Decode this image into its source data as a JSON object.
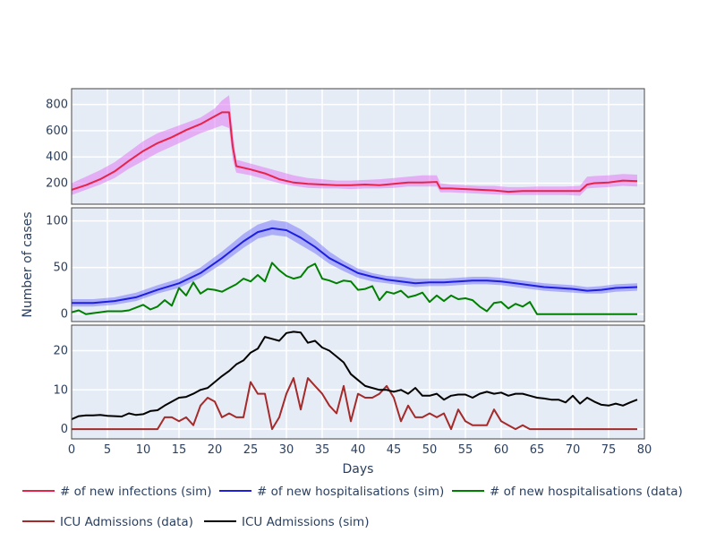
{
  "chart_data": [
    {
      "type": "line",
      "panel": "top",
      "xlim": [
        0,
        80
      ],
      "ylim": [
        40,
        920
      ],
      "y_ticks": [
        200,
        400,
        600,
        800
      ],
      "grid": true,
      "series": [
        {
          "name": "# of new infections (sim)",
          "color": "#e8234a",
          "band_color": "#e27cf0",
          "x": [
            0,
            2,
            4,
            6,
            8,
            10,
            12,
            14,
            16,
            18,
            20,
            21,
            22,
            22.5,
            23,
            25,
            27,
            29,
            31,
            33,
            35,
            37,
            39,
            41,
            43,
            45,
            47,
            49,
            51,
            51.5,
            53,
            55,
            57,
            59,
            61,
            63,
            65,
            67,
            69,
            71,
            72,
            73,
            75,
            77,
            79
          ],
          "values": [
            150,
            185,
            230,
            290,
            370,
            445,
            505,
            550,
            605,
            650,
            710,
            740,
            740,
            480,
            330,
            305,
            275,
            230,
            205,
            195,
            190,
            185,
            185,
            190,
            185,
            195,
            205,
            205,
            210,
            160,
            160,
            155,
            150,
            145,
            135,
            140,
            140,
            140,
            140,
            140,
            190,
            200,
            205,
            220,
            215
          ],
          "upper": [
            200,
            250,
            300,
            360,
            440,
            520,
            580,
            620,
            660,
            700,
            770,
            830,
            870,
            600,
            380,
            350,
            320,
            290,
            260,
            240,
            230,
            220,
            220,
            225,
            230,
            240,
            250,
            260,
            260,
            200,
            190,
            185,
            180,
            180,
            170,
            170,
            175,
            175,
            175,
            180,
            250,
            255,
            260,
            270,
            265
          ],
          "lower": [
            110,
            150,
            190,
            240,
            310,
            370,
            430,
            480,
            530,
            580,
            620,
            640,
            620,
            380,
            280,
            260,
            230,
            200,
            180,
            165,
            160,
            160,
            155,
            160,
            160,
            165,
            175,
            175,
            175,
            130,
            130,
            125,
            120,
            115,
            110,
            110,
            110,
            110,
            110,
            105,
            160,
            165,
            170,
            180,
            175
          ]
        }
      ]
    },
    {
      "type": "line",
      "panel": "middle",
      "xlim": [
        0,
        80
      ],
      "ylim": [
        -8,
        114
      ],
      "y_ticks": [
        0,
        50,
        100
      ],
      "ylabel": "Number of cases",
      "grid": true,
      "series": [
        {
          "name": "# of new hospitalisations (sim)",
          "color": "#1f1fe0",
          "band_color": "#7d7dfa",
          "x": [
            0,
            3,
            6,
            9,
            12,
            15,
            18,
            21,
            24,
            26,
            28,
            30,
            32,
            34,
            36,
            38,
            40,
            42,
            44,
            46,
            48,
            50,
            52,
            54,
            56,
            58,
            60,
            62,
            64,
            66,
            68,
            70,
            72,
            74,
            76,
            79
          ],
          "values": [
            12,
            12,
            14,
            18,
            26,
            33,
            44,
            60,
            78,
            88,
            92,
            90,
            82,
            72,
            60,
            52,
            44,
            40,
            37,
            35,
            33,
            34,
            34,
            35,
            36,
            36,
            35,
            33,
            31,
            29,
            28,
            27,
            25,
            26,
            28,
            29
          ],
          "upper": [
            16,
            16,
            18,
            23,
            31,
            38,
            50,
            67,
            86,
            96,
            101,
            99,
            91,
            80,
            67,
            57,
            49,
            44,
            41,
            40,
            38,
            38,
            38,
            39,
            40,
            40,
            39,
            37,
            35,
            33,
            32,
            31,
            29,
            30,
            32,
            33
          ],
          "lower": [
            8,
            8,
            10,
            14,
            22,
            28,
            39,
            54,
            71,
            81,
            85,
            83,
            74,
            65,
            54,
            46,
            39,
            35,
            33,
            31,
            29,
            30,
            30,
            31,
            32,
            32,
            31,
            29,
            27,
            25,
            24,
            23,
            22,
            22,
            24,
            25
          ]
        },
        {
          "name": "# of new hospitalisations (data)",
          "color": "#008000",
          "x": [
            0,
            1,
            2,
            3,
            4,
            5,
            6,
            7,
            8,
            9,
            10,
            11,
            12,
            13,
            14,
            15,
            16,
            17,
            18,
            19,
            20,
            21,
            22,
            23,
            24,
            25,
            26,
            27,
            28,
            29,
            30,
            31,
            32,
            33,
            34,
            35,
            36,
            37,
            38,
            39,
            40,
            41,
            42,
            43,
            44,
            45,
            46,
            47,
            48,
            49,
            50,
            51,
            52,
            53,
            54,
            55,
            56,
            57,
            58,
            59,
            60,
            61,
            62,
            63,
            64,
            65,
            66,
            67,
            68,
            69,
            70,
            71,
            72,
            73,
            74,
            75,
            76,
            77,
            78,
            79
          ],
          "values": [
            2,
            4,
            0,
            1,
            2,
            3,
            3,
            3,
            4,
            7,
            10,
            5,
            8,
            15,
            9,
            28,
            20,
            34,
            22,
            27,
            26,
            24,
            28,
            32,
            38,
            35,
            42,
            35,
            55,
            47,
            41,
            38,
            40,
            50,
            54,
            38,
            36,
            33,
            36,
            35,
            26,
            27,
            30,
            15,
            24,
            22,
            25,
            18,
            20,
            23,
            13,
            20,
            14,
            20,
            16,
            17,
            15,
            8,
            3,
            12,
            13,
            6,
            11,
            8,
            13,
            0,
            0,
            0,
            0,
            0,
            0,
            0,
            0,
            0,
            0,
            0,
            0,
            0,
            0,
            0
          ]
        }
      ]
    },
    {
      "type": "line",
      "panel": "bottom",
      "xlim": [
        0,
        80
      ],
      "ylim": [
        -2.5,
        26.5
      ],
      "y_ticks": [
        0,
        10,
        20
      ],
      "xlabel": "Days",
      "x_ticks": [
        0,
        5,
        10,
        15,
        20,
        25,
        30,
        35,
        40,
        45,
        50,
        55,
        60,
        65,
        70,
        75,
        80
      ],
      "grid": true,
      "series": [
        {
          "name": "ICU Admissions (data)",
          "color": "#a52a2a",
          "x": [
            0,
            1,
            2,
            3,
            4,
            5,
            6,
            7,
            8,
            9,
            10,
            11,
            12,
            13,
            14,
            15,
            16,
            17,
            18,
            19,
            20,
            21,
            22,
            23,
            24,
            25,
            26,
            27,
            28,
            29,
            30,
            31,
            32,
            33,
            34,
            35,
            36,
            37,
            38,
            39,
            40,
            41,
            42,
            43,
            44,
            45,
            46,
            47,
            48,
            49,
            50,
            51,
            52,
            53,
            54,
            55,
            56,
            57,
            58,
            59,
            60,
            61,
            62,
            63,
            64,
            65,
            66,
            67,
            68,
            69,
            70,
            71,
            72,
            73,
            74,
            75,
            76,
            77,
            78,
            79
          ],
          "values": [
            0,
            0,
            0,
            0,
            0,
            0,
            0,
            0,
            0,
            0,
            0,
            0,
            0,
            3,
            3,
            2,
            3,
            1,
            6,
            8,
            7,
            3,
            4,
            3,
            3,
            12,
            9,
            9,
            0,
            3,
            9,
            13,
            5,
            13,
            11,
            9,
            6,
            4,
            11,
            2,
            9,
            8,
            8,
            9,
            11,
            8,
            2,
            6,
            3,
            3,
            4,
            3,
            4,
            0,
            5,
            2,
            1,
            1,
            1,
            5,
            2,
            1,
            0,
            1,
            0,
            0,
            0,
            0,
            0,
            0,
            0,
            0,
            0,
            0,
            0,
            0,
            0,
            0,
            0,
            0
          ]
        },
        {
          "name": "ICU Admissions (sim)",
          "color": "#000000",
          "x": [
            0,
            1,
            2,
            3,
            4,
            5,
            6,
            7,
            8,
            9,
            10,
            11,
            12,
            13,
            14,
            15,
            16,
            17,
            18,
            19,
            20,
            21,
            22,
            23,
            24,
            25,
            26,
            27,
            28,
            29,
            30,
            31,
            32,
            33,
            34,
            35,
            36,
            37,
            38,
            39,
            40,
            41,
            42,
            43,
            44,
            45,
            46,
            47,
            48,
            49,
            50,
            51,
            52,
            53,
            54,
            55,
            56,
            57,
            58,
            59,
            60,
            61,
            62,
            63,
            64,
            65,
            66,
            67,
            68,
            69,
            70,
            71,
            72,
            73,
            74,
            75,
            76,
            77,
            78,
            79
          ],
          "values": [
            2.5,
            3.3,
            3.5,
            3.5,
            3.6,
            3.4,
            3.3,
            3.2,
            4.0,
            3.6,
            3.8,
            4.6,
            4.8,
            6.0,
            7.0,
            8.0,
            8.2,
            9.0,
            10.0,
            10.5,
            12.0,
            13.5,
            14.8,
            16.5,
            17.5,
            19.5,
            20.5,
            23.5,
            23.0,
            22.5,
            24.5,
            24.8,
            24.6,
            22.0,
            22.5,
            20.8,
            20.0,
            18.5,
            17.0,
            14.0,
            12.5,
            11.0,
            10.5,
            10.0,
            10.0,
            9.5,
            10.0,
            9.0,
            10.5,
            8.5,
            8.5,
            9.0,
            7.5,
            8.5,
            8.8,
            8.8,
            8.0,
            9.0,
            9.5,
            9.0,
            9.3,
            8.5,
            9.0,
            9.0,
            8.5,
            8.0,
            7.8,
            7.5,
            7.5,
            6.8,
            8.5,
            6.5,
            8.0,
            7.0,
            6.2,
            6.0,
            6.5,
            6.0,
            6.8,
            7.5
          ]
        }
      ]
    }
  ],
  "legend": [
    {
      "label": "# of new infections (sim)",
      "color": "#e8234a"
    },
    {
      "label": "# of new hospitalisations (sim)",
      "color": "#1f1fe0"
    },
    {
      "label": "# of new hospitalisations (data)",
      "color": "#008000"
    },
    {
      "label": "ICU Admissions (data)",
      "color": "#a52a2a"
    },
    {
      "label": "ICU Admissions (sim)",
      "color": "#000000"
    }
  ],
  "legend_placement": "bottom",
  "colors": {
    "plot_bg": "#e5ecf6",
    "grid": "#ffffff",
    "axis_text": "#2a3f5f"
  }
}
